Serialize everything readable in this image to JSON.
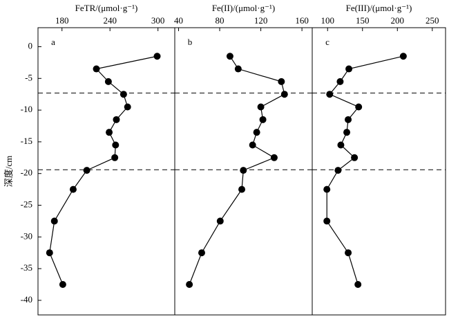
{
  "chart_data": [
    {
      "type": "line",
      "title": "FeTR/(μmol·g⁻¹)",
      "label": "a",
      "y_label": "深度/cm",
      "x": [
        299,
        223,
        238,
        257,
        262,
        248,
        239,
        247,
        246,
        211,
        194,
        170.5,
        164.5,
        181
      ],
      "y": [
        -1.5,
        -3.5,
        -5.5,
        -7.5,
        -9.5,
        -11.5,
        -13.5,
        -15.5,
        -17.5,
        -19.5,
        -22.5,
        -27.5,
        -32.5,
        -37.5
      ],
      "xlim": [
        150,
        321
      ],
      "xticks": [
        180,
        240,
        300
      ],
      "ylim": [
        -42.3,
        3
      ],
      "yticks": [
        0,
        -5,
        -10,
        -15,
        -20,
        -25,
        -30,
        -35,
        -40
      ],
      "hlines": [
        -7.3,
        -19.4
      ],
      "color": "#000000"
    },
    {
      "type": "line",
      "title": "Fe(II)/(μmol·g⁻¹)",
      "label": "b",
      "x": [
        90,
        98,
        140,
        143,
        120,
        122,
        116,
        112,
        133,
        103,
        101.5,
        80.5,
        62.5,
        50.5
      ],
      "y": [
        -1.5,
        -3.5,
        -5.5,
        -7.5,
        -9.5,
        -11.5,
        -13.5,
        -15.5,
        -17.5,
        -19.5,
        -22.5,
        -27.5,
        -32.5,
        -37.5
      ],
      "xlim": [
        36.3,
        170
      ],
      "xticks": [
        40,
        80,
        120,
        160
      ],
      "ylim": [
        -42.3,
        3
      ],
      "hlines": [
        -7.3,
        -19.4
      ],
      "color": "#000000"
    },
    {
      "type": "line",
      "title": "Fe(III)/(μmol·g⁻¹)",
      "label": "c",
      "x": [
        208.5,
        130.5,
        118,
        103,
        144.5,
        129.5,
        127.5,
        119,
        138.5,
        115,
        99,
        99,
        129.5,
        143.5
      ],
      "y": [
        -1.5,
        -3.5,
        -5.5,
        -7.5,
        -9.5,
        -11.5,
        -13.5,
        -15.5,
        -17.5,
        -19.5,
        -22.5,
        -27.5,
        -32.5,
        -37.5
      ],
      "xlim": [
        78,
        269
      ],
      "xticks": [
        100,
        150,
        200,
        250
      ],
      "ylim": [
        -42.3,
        3
      ],
      "hlines": [
        -7.3,
        -19.4
      ],
      "color": "#000000"
    }
  ]
}
